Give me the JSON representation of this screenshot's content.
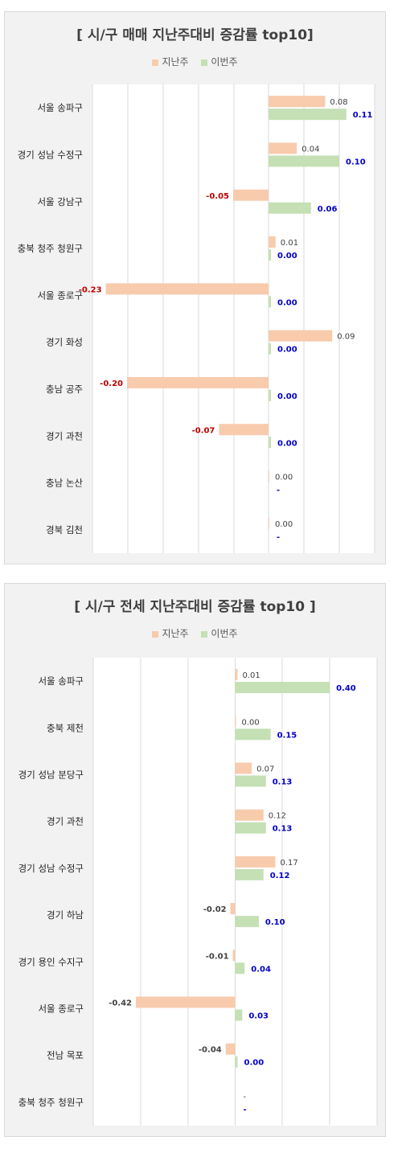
{
  "colors": {
    "prev": "#f8cbad",
    "curr": "#c5e0b4",
    "neg_label": "#c00000",
    "curr_label": "#0000cc",
    "prev_label": "#404040"
  },
  "chart_data": [
    {
      "type": "bar",
      "orientation": "horizontal",
      "title": "[ 시/구 매매 지난주대비 증감률 top10]",
      "legend_position": "top",
      "categories": [
        "서울 송파구",
        "경기 성남 수정구",
        "서울 강남구",
        "충북 청주 청원구",
        "서울 종로구",
        "경기 화성",
        "충남 공주",
        "경기 과천",
        "충남 논산",
        "경북 김천"
      ],
      "series": [
        {
          "name": "지난주",
          "values": [
            0.08,
            0.04,
            -0.05,
            0.01,
            -0.23,
            0.09,
            -0.2,
            -0.07,
            0.0,
            0.0
          ],
          "labels": [
            "0.08",
            "0.04",
            "-0.05",
            "0.01",
            "-0.23",
            "0.09",
            "-0.20",
            "-0.07",
            "0.00",
            "0.00"
          ]
        },
        {
          "name": "이번주",
          "values": [
            0.11,
            0.1,
            0.06,
            0.0,
            0.0,
            0.0,
            0.0,
            0.0,
            null,
            null
          ],
          "labels": [
            "0.11",
            "0.10",
            "0.06",
            "0.00",
            "0.00",
            "0.00",
            "0.00",
            "0.00",
            "-",
            "-"
          ]
        }
      ],
      "xlim": [
        -0.25,
        0.15
      ],
      "grid": true
    },
    {
      "type": "bar",
      "orientation": "horizontal",
      "title": "[ 시/구 전세 지난주대비 증감률 top10 ]",
      "legend_position": "top",
      "categories": [
        "서울 송파구",
        "충북 제천",
        "경기 성남 분당구",
        "경기 과천",
        "경기 성남 수정구",
        "경기 하남",
        "경기 용인 수지구",
        "서울 종로구",
        "전남 목포",
        "충북 청주 청원구"
      ],
      "series": [
        {
          "name": "지난주",
          "values": [
            0.01,
            0.0,
            0.07,
            0.12,
            0.17,
            -0.02,
            -0.01,
            -0.42,
            -0.04,
            null
          ],
          "labels": [
            "0.01",
            "0.00",
            "0.07",
            "0.12",
            "0.17",
            "-0.02",
            "-0.01",
            "-0.42",
            "-0.04",
            "-"
          ]
        },
        {
          "name": "이번주",
          "values": [
            0.4,
            0.15,
            0.13,
            0.13,
            0.12,
            0.1,
            0.04,
            0.03,
            0.0,
            null
          ],
          "labels": [
            "0.40",
            "0.15",
            "0.13",
            "0.13",
            "0.12",
            "0.10",
            "0.04",
            "0.03",
            "0.00",
            "-"
          ]
        }
      ],
      "xlim": [
        -0.6,
        0.6
      ],
      "grid": true
    }
  ]
}
